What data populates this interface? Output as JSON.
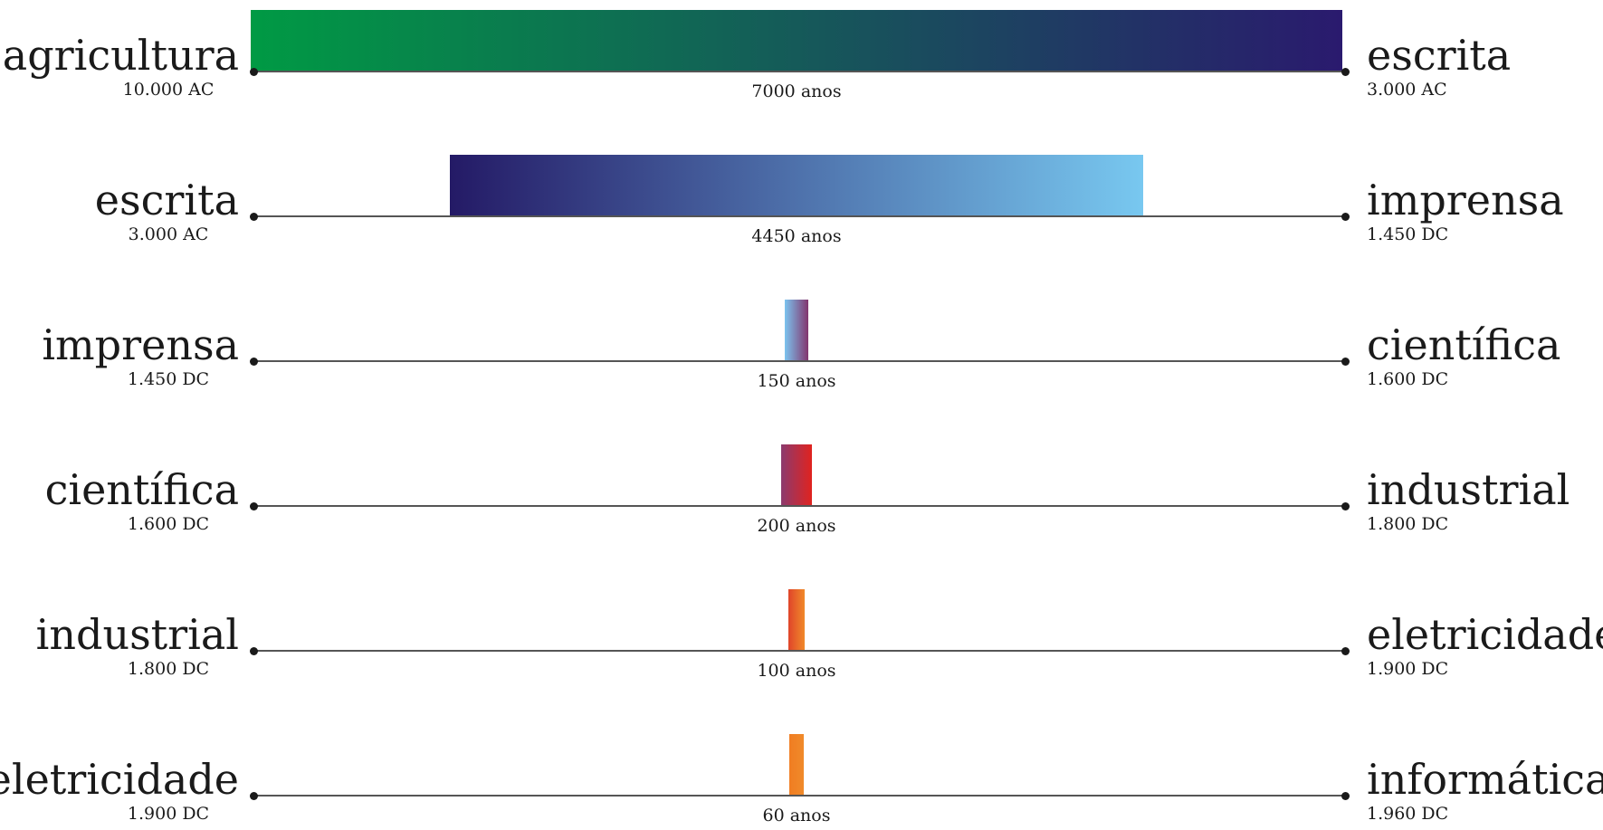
{
  "timeline": [
    {
      "start_label": "agricultura",
      "start_date": "10.000 AC",
      "end_label": "escrita",
      "end_date": "3.000 AC",
      "duration_label": "7000 anos",
      "duration_years": 7000,
      "colors": [
        "#009a44",
        "#2a1a6e"
      ]
    },
    {
      "start_label": "escrita",
      "start_date": "3.000 AC",
      "end_label": "imprensa",
      "end_date": "1.450 DC",
      "duration_label": "4450 anos",
      "duration_years": 4450,
      "colors": [
        "#241a66",
        "#78c8f0"
      ]
    },
    {
      "start_label": "imprensa",
      "start_date": "1.450 DC",
      "end_label": "científica",
      "end_date": "1.600 DC",
      "duration_label": "150 anos",
      "duration_years": 150,
      "colors": [
        "#7cc4ef",
        "#82356e"
      ]
    },
    {
      "start_label": "científica",
      "start_date": "1.600 DC",
      "end_label": "industrial",
      "end_date": "1.800 DC",
      "duration_label": "200 anos",
      "duration_years": 200,
      "colors": [
        "#8c3a6e",
        "#e0231f"
      ]
    },
    {
      "start_label": "industrial",
      "start_date": "1.800 DC",
      "end_label": "eletricidade",
      "end_date": "1.900 DC",
      "duration_label": "100 anos",
      "duration_years": 100,
      "colors": [
        "#e0452a",
        "#f08a2a"
      ]
    },
    {
      "start_label": "eletricidade",
      "start_date": "1.900 DC",
      "end_label": "informática",
      "end_date": "1.960 DC",
      "duration_label": "60 anos",
      "duration_years": 60,
      "colors": [
        "#f07d22",
        "#f08a2a"
      ]
    }
  ]
}
